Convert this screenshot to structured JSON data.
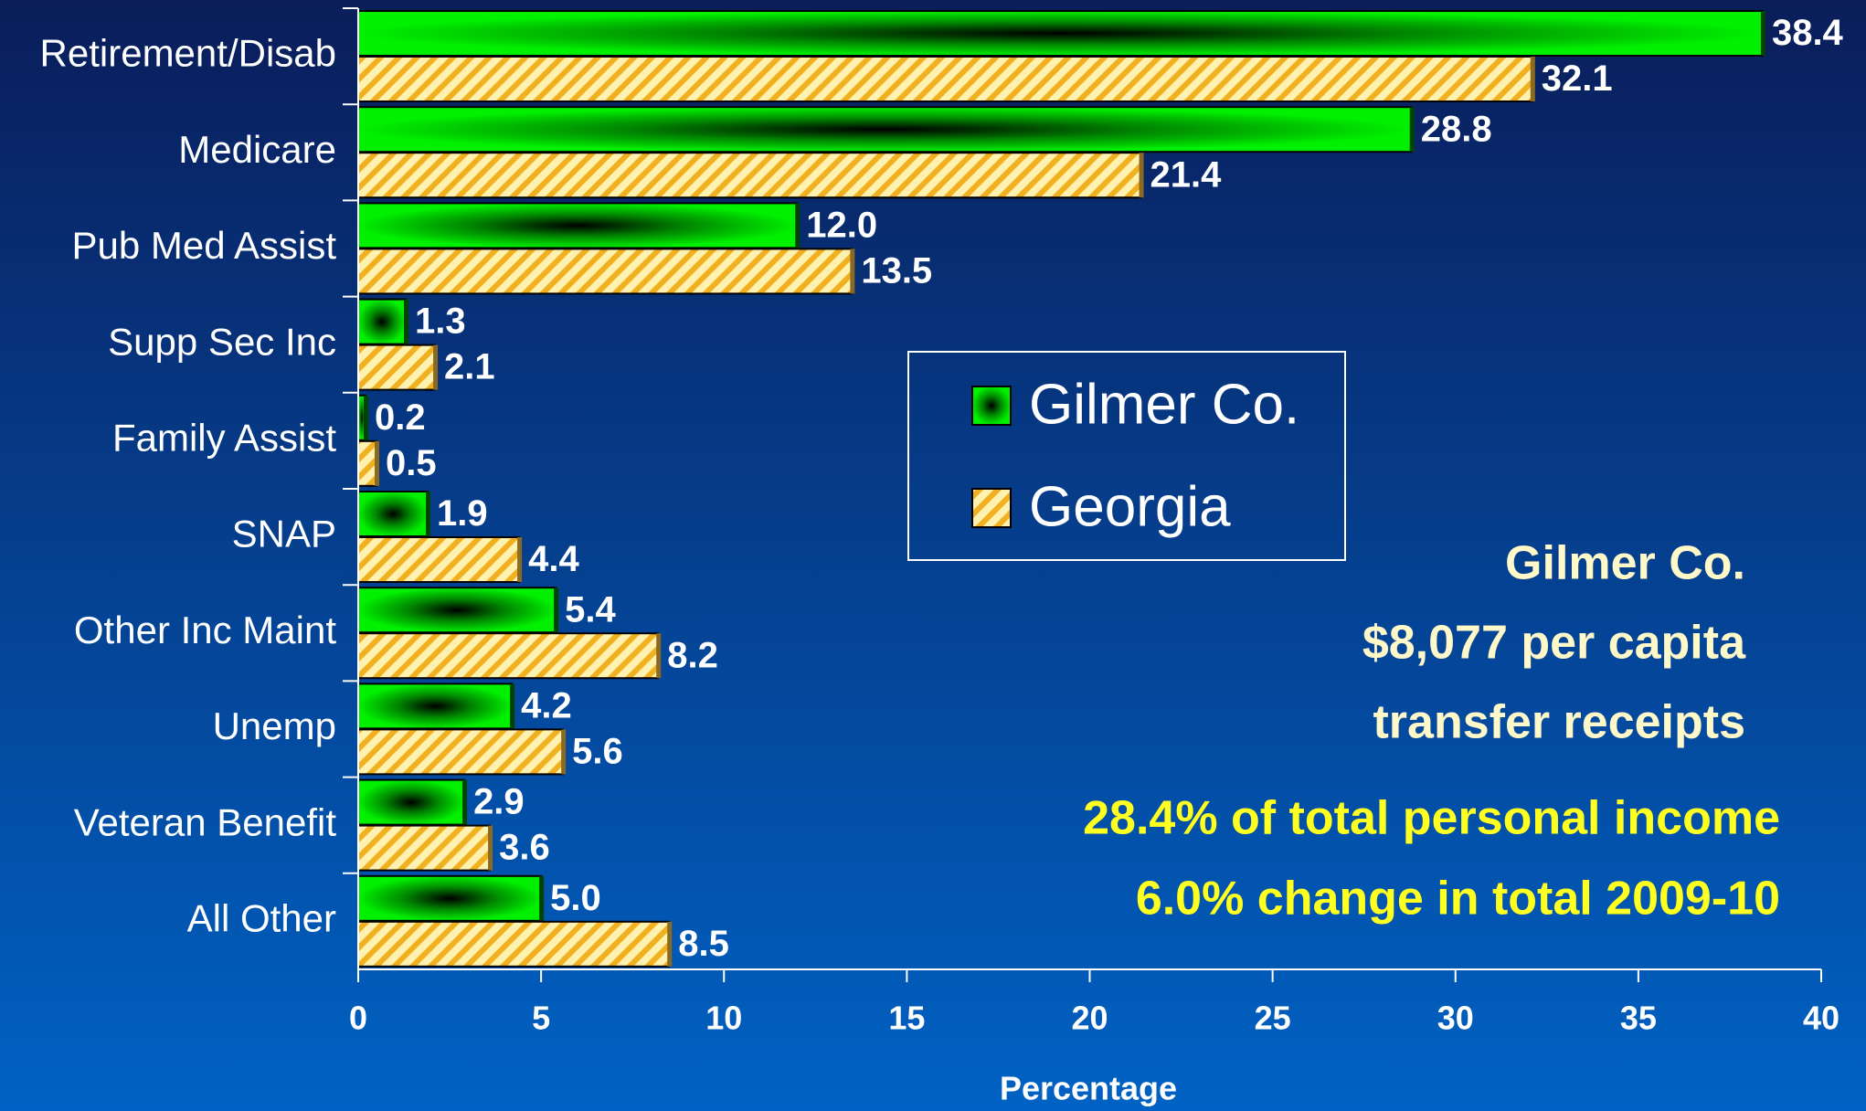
{
  "chart_data": {
    "type": "hbar",
    "categories": [
      "Retirement/Disab",
      "Medicare",
      "Pub Med Assist",
      "Supp Sec Inc",
      "Family Assist",
      "SNAP",
      "Other Inc Maint",
      "Unemp",
      "Veteran Benefit",
      "All Other"
    ],
    "series": [
      {
        "name": "Gilmer Co.",
        "color": "#00e600",
        "values": [
          38.4,
          28.8,
          12,
          1.3,
          0.2,
          1.9,
          5.4,
          4.2,
          2.9,
          5
        ],
        "value_labels": [
          "38.4",
          "28.8",
          "12.0",
          "1.3",
          "0.2",
          "1.9",
          "5.4",
          "4.2",
          "2.9",
          "5.0"
        ]
      },
      {
        "name": "Georgia",
        "color": "#ffd040",
        "values": [
          32.1,
          21.4,
          13.5,
          2.1,
          0.5,
          4.4,
          8.2,
          5.6,
          3.6,
          8.5
        ],
        "value_labels": [
          "32.1",
          "21.4",
          "13.5",
          "2.1",
          "0.5",
          "4.4",
          "8.2",
          "5.6",
          "3.6",
          "8.5"
        ]
      }
    ],
    "xlim": [
      0,
      40
    ],
    "xticks": [
      0,
      5,
      10,
      15,
      20,
      25,
      30,
      35,
      40
    ],
    "xlabel": "Percentage",
    "annotations": [
      "Gilmer Co.",
      "$8,077 per capita",
      "transfer receipts",
      "28.4% of total personal income",
      "6.0% change in total 2009-10"
    ]
  }
}
